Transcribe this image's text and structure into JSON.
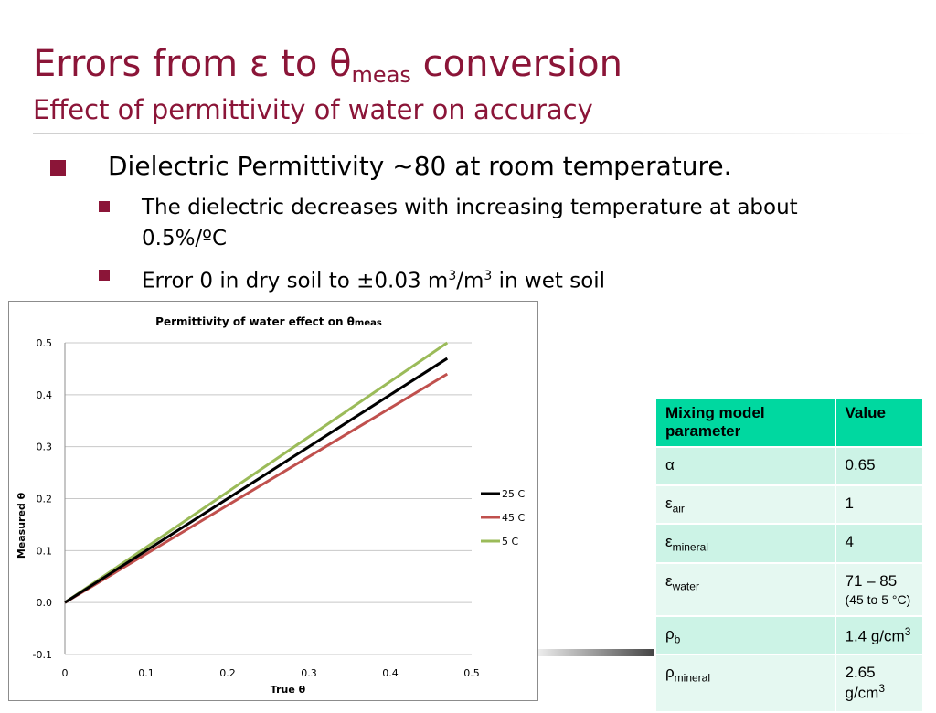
{
  "slide": {
    "title_main": "Errors from ε to θ",
    "title_sub": "meas",
    "title_end": " conversion",
    "subtitle": "Effect of permittivity of water on accuracy",
    "bullet1": "Dielectric Permittivity ~80 at room temperature.",
    "bullet2": "The dielectric decreases with increasing  temperature at about 0.5%/ºC",
    "bullet3_a": "Error 0 in dry soil to ±0.03 m",
    "bullet3_sup1": "3",
    "bullet3_b": "/m",
    "bullet3_sup2": "3",
    "bullet3_c": " in wet soil",
    "colors": {
      "title": "#8b1538",
      "bullet": "#8b1538",
      "header": "#00d8a0",
      "row": "#ccf3e6",
      "row_alt": "#e5f8f1",
      "highlight": "#d40000"
    }
  },
  "chart_data": {
    "type": "line",
    "title": "Permittivity of water effect on θ",
    "title_sub": "meas",
    "xlabel": "True θ",
    "ylabel": "Measured θ",
    "xlim": [
      0,
      0.5
    ],
    "ylim": [
      -0.1,
      0.5
    ],
    "xticks": [
      0,
      0.1,
      0.2,
      0.3,
      0.4,
      0.5
    ],
    "xtick_labels": [
      "0",
      "0.1",
      "0.2",
      "0.3",
      "0.4",
      "0.5"
    ],
    "yticks": [
      -0.1,
      0,
      0.1,
      0.2,
      0.3,
      0.4,
      0.5
    ],
    "ytick_labels": [
      "-0.1",
      "0.0",
      "0.1",
      "0.2",
      "0.3",
      "0.4",
      "0.5"
    ],
    "grid": true,
    "legend_position": "right",
    "series": [
      {
        "name": "25 C",
        "color": "#000000",
        "x": [
          0,
          0.47
        ],
        "y": [
          0,
          0.47
        ]
      },
      {
        "name": "45 C",
        "color": "#c0504d",
        "x": [
          0,
          0.47
        ],
        "y": [
          0,
          0.44
        ]
      },
      {
        "name": "5 C",
        "color": "#9bbb59",
        "x": [
          0,
          0.47
        ],
        "y": [
          0,
          0.5
        ]
      }
    ]
  },
  "table": {
    "headers": [
      "Mixing model parameter",
      "Value"
    ],
    "rows": [
      {
        "sym": "α",
        "sub": "",
        "value": "0.65",
        "value_sup": "",
        "note": ""
      },
      {
        "sym": "ε",
        "sub": "air",
        "value": "1",
        "value_sup": "",
        "note": ""
      },
      {
        "sym": "ε",
        "sub": "mineral",
        "value": "4",
        "value_sup": "",
        "note": ""
      },
      {
        "sym": "ε",
        "sub": "water",
        "value": "71 – 85",
        "value_sup": "",
        "note": "(45 to 5 °C)"
      },
      {
        "sym": "ρ",
        "sub": "b",
        "value": "1.4 g/cm",
        "value_sup": "3",
        "note": ""
      },
      {
        "sym": "ρ",
        "sub": "mineral",
        "value": "2.65 g/cm",
        "value_sup": "3",
        "note": ""
      }
    ]
  }
}
